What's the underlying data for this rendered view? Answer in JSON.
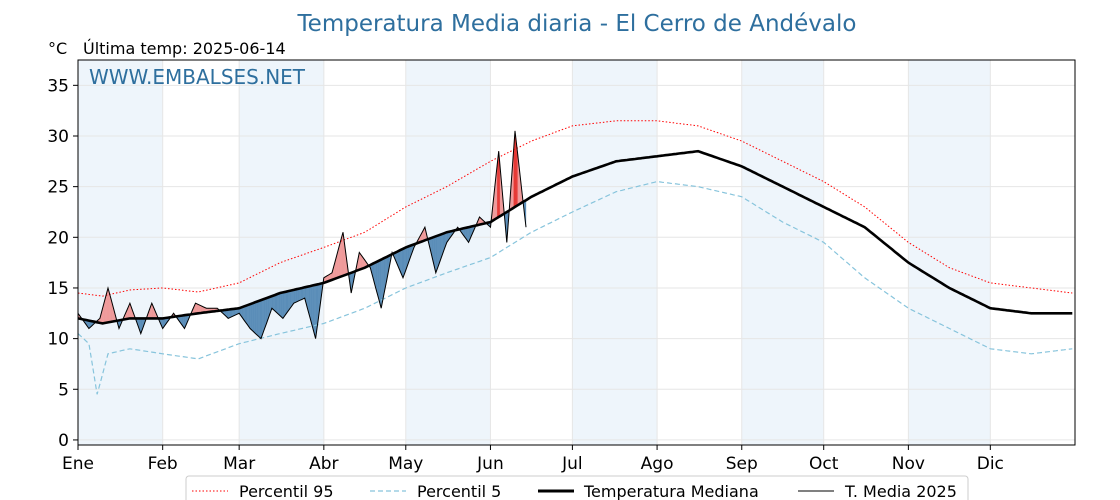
{
  "title": "Temperatura Media diaria - El Cerro de Andévalo",
  "unit_label": "°C",
  "last_temp_label": "Última temp: 2025-06-14",
  "watermark": "WWW.EMBALSES.NET",
  "colors": {
    "p95": "#ff0000",
    "p5": "#87c4dc",
    "median": "#000000",
    "current": "#000000",
    "above_fill": "#ef9a9a",
    "above_fill_strong": "#e53935",
    "below_fill": "#5b8db8",
    "month_band": "#eef5fb",
    "title": "#2e6f9e"
  },
  "chart_data": {
    "type": "line",
    "title": "Temperatura Media diaria - El Cerro de Andévalo",
    "ylabel": "°C",
    "ylim": [
      -0.5,
      37.5
    ],
    "xlim": [
      1,
      366
    ],
    "yticks": [
      0,
      5,
      10,
      15,
      20,
      25,
      30,
      35
    ],
    "xtick_days": [
      1,
      32,
      60,
      91,
      121,
      152,
      182,
      213,
      244,
      274,
      305,
      335
    ],
    "xtick_labels": [
      "Ene",
      "Feb",
      "Mar",
      "Abr",
      "May",
      "Jun",
      "Jul",
      "Ago",
      "Sep",
      "Oct",
      "Nov",
      "Dic"
    ],
    "grid": true,
    "alternating_month_shading": true,
    "legend_position": "bottom-center",
    "series": [
      {
        "name": "Percentil 95",
        "style": "dotted",
        "x": [
          1,
          10,
          20,
          32,
          45,
          60,
          75,
          91,
          106,
          121,
          136,
          152,
          167,
          182,
          198,
          213,
          228,
          244,
          259,
          274,
          289,
          305,
          320,
          335,
          350,
          365
        ],
        "values": [
          14.5,
          14.2,
          14.8,
          15.0,
          14.6,
          15.5,
          17.5,
          19.0,
          20.5,
          23.0,
          25.0,
          27.5,
          29.5,
          31.0,
          31.5,
          31.5,
          31.0,
          29.5,
          27.5,
          25.5,
          23.0,
          19.5,
          17.0,
          15.5,
          15.0,
          14.5
        ]
      },
      {
        "name": "Percentil 5",
        "style": "dashed",
        "x": [
          1,
          5,
          8,
          12,
          20,
          32,
          45,
          60,
          75,
          91,
          106,
          121,
          136,
          152,
          167,
          182,
          198,
          213,
          228,
          244,
          259,
          274,
          289,
          305,
          320,
          335,
          350,
          365
        ],
        "values": [
          10.5,
          9.5,
          4.5,
          8.5,
          9.0,
          8.5,
          8.0,
          9.5,
          10.5,
          11.5,
          13.0,
          15.0,
          16.5,
          18.0,
          20.5,
          22.5,
          24.5,
          25.5,
          25.0,
          24.0,
          21.5,
          19.5,
          16.0,
          13.0,
          11.0,
          9.0,
          8.5,
          9.0
        ]
      },
      {
        "name": "Temperatura Mediana",
        "style": "solid-thick",
        "x": [
          1,
          10,
          20,
          32,
          45,
          60,
          75,
          91,
          106,
          121,
          136,
          152,
          167,
          182,
          198,
          213,
          228,
          244,
          259,
          274,
          289,
          305,
          320,
          335,
          350,
          365
        ],
        "values": [
          12.0,
          11.5,
          12.0,
          12.0,
          12.5,
          13.0,
          14.5,
          15.5,
          17.0,
          19.0,
          20.5,
          21.5,
          24.0,
          26.0,
          27.5,
          28.0,
          28.5,
          27.0,
          25.0,
          23.0,
          21.0,
          17.5,
          15.0,
          13.0,
          12.5,
          12.5
        ]
      },
      {
        "name": "T. Media 2025",
        "style": "solid-thin",
        "x": [
          1,
          5,
          9,
          12,
          16,
          20,
          24,
          28,
          32,
          36,
          40,
          44,
          48,
          52,
          56,
          60,
          64,
          68,
          72,
          76,
          80,
          84,
          88,
          91,
          94,
          98,
          101,
          104,
          108,
          112,
          116,
          120,
          124,
          128,
          132,
          136,
          140,
          144,
          148,
          152,
          155,
          158,
          161,
          165
        ],
        "values": [
          12.5,
          11.0,
          12.0,
          15.0,
          11.0,
          13.5,
          10.5,
          13.5,
          11.0,
          12.5,
          11.0,
          13.5,
          13.0,
          13.0,
          12.0,
          12.5,
          11.0,
          10.0,
          13.0,
          12.0,
          13.5,
          14.0,
          10.0,
          16.0,
          16.5,
          20.5,
          14.5,
          18.5,
          17.0,
          13.0,
          18.5,
          16.0,
          19.0,
          21.0,
          16.5,
          19.5,
          21.0,
          19.5,
          22.0,
          21.0,
          28.5,
          19.5,
          30.5,
          21.0
        ]
      }
    ]
  }
}
